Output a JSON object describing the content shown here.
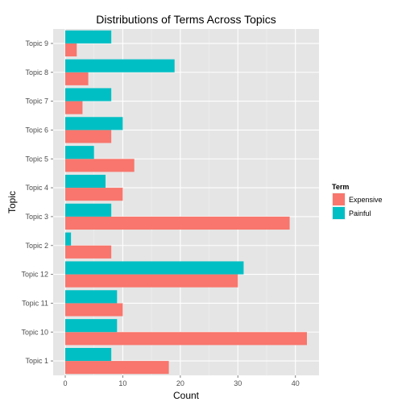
{
  "chart_data": {
    "type": "bar",
    "orientation": "horizontal",
    "title": "Distributions of Terms Across Topics",
    "xlabel": "Count",
    "ylabel": "Topic",
    "xlim": [
      -2.1,
      44.1
    ],
    "xticks": [
      0,
      10,
      20,
      30,
      40
    ],
    "grid": true,
    "legend_position": "right",
    "legend_title": "Term",
    "categories": [
      "Topic 1",
      "Topic 10",
      "Topic 11",
      "Topic 12",
      "Topic 2",
      "Topic 3",
      "Topic 4",
      "Topic 5",
      "Topic 6",
      "Topic 7",
      "Topic 8",
      "Topic 9"
    ],
    "series": [
      {
        "name": "Expensive",
        "color": "#f8766d",
        "values": [
          18,
          42,
          10,
          30,
          8,
          39,
          10,
          12,
          8,
          3,
          4,
          2
        ]
      },
      {
        "name": "Painful",
        "color": "#00bfc4",
        "values": [
          8,
          9,
          9,
          31,
          1,
          8,
          7,
          5,
          10,
          8,
          19,
          8
        ]
      }
    ]
  }
}
